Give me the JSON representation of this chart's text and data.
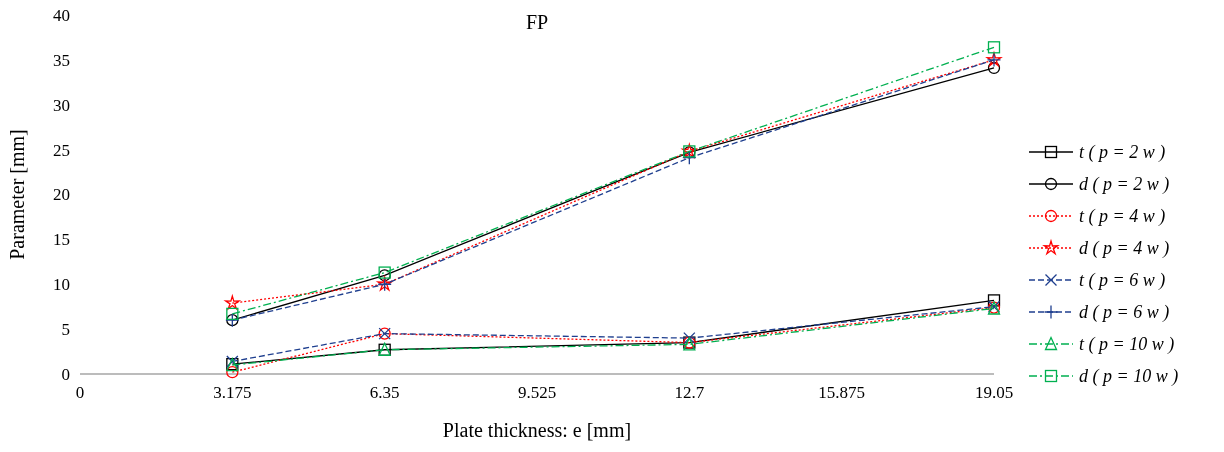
{
  "chart_data": {
    "type": "line",
    "title": "FP",
    "xlabel": "Plate thickness: e [mm]",
    "ylabel": "Parameter [mm]",
    "x": [
      3.175,
      6.35,
      12.7,
      19.05
    ],
    "xlim": [
      0,
      19.05
    ],
    "xticks": [
      0,
      3.175,
      6.35,
      9.525,
      12.7,
      15.875,
      19.05
    ],
    "ylim": [
      0,
      40
    ],
    "yticks": [
      0,
      5,
      10,
      15,
      20,
      25,
      30,
      35,
      40
    ],
    "grid": false,
    "legend": "right",
    "series": [
      {
        "name": "t ( p = 2 w )",
        "color": "#000000",
        "values": [
          1.1,
          2.7,
          3.5,
          8.2
        ],
        "marker": "square",
        "line_style": "solid"
      },
      {
        "name": "d ( p = 2 w )",
        "color": "#000000",
        "values": [
          6.0,
          11.0,
          24.7,
          34.1
        ],
        "marker": "circle",
        "line_style": "solid"
      },
      {
        "name": "t ( p = 4 w )",
        "color": "#ff0000",
        "values": [
          0.2,
          4.5,
          3.5,
          7.4
        ],
        "marker": "circle",
        "line_style": "dotted"
      },
      {
        "name": "d ( p = 4 w )",
        "color": "#ff0000",
        "values": [
          7.9,
          10.0,
          24.8,
          35.0
        ],
        "marker": "star",
        "line_style": "dotted"
      },
      {
        "name": "t ( p = 6 w )",
        "color": "#1f3f8f",
        "values": [
          1.4,
          4.5,
          4.0,
          7.5
        ],
        "marker": "cross",
        "line_style": "dashed"
      },
      {
        "name": "d ( p = 6 w )",
        "color": "#1f3f8f",
        "values": [
          6.0,
          10.0,
          24.1,
          35.0
        ],
        "marker": "plus",
        "line_style": "dashed"
      },
      {
        "name": "t ( p = 10 w )",
        "color": "#00b050",
        "values": [
          1.0,
          2.7,
          3.3,
          7.3
        ],
        "marker": "triangle",
        "line_style": "dashdot"
      },
      {
        "name": "d ( p = 10 w )",
        "color": "#00b050",
        "values": [
          6.7,
          11.3,
          24.8,
          36.4
        ],
        "marker": "square",
        "line_style": "dashdot"
      }
    ]
  }
}
